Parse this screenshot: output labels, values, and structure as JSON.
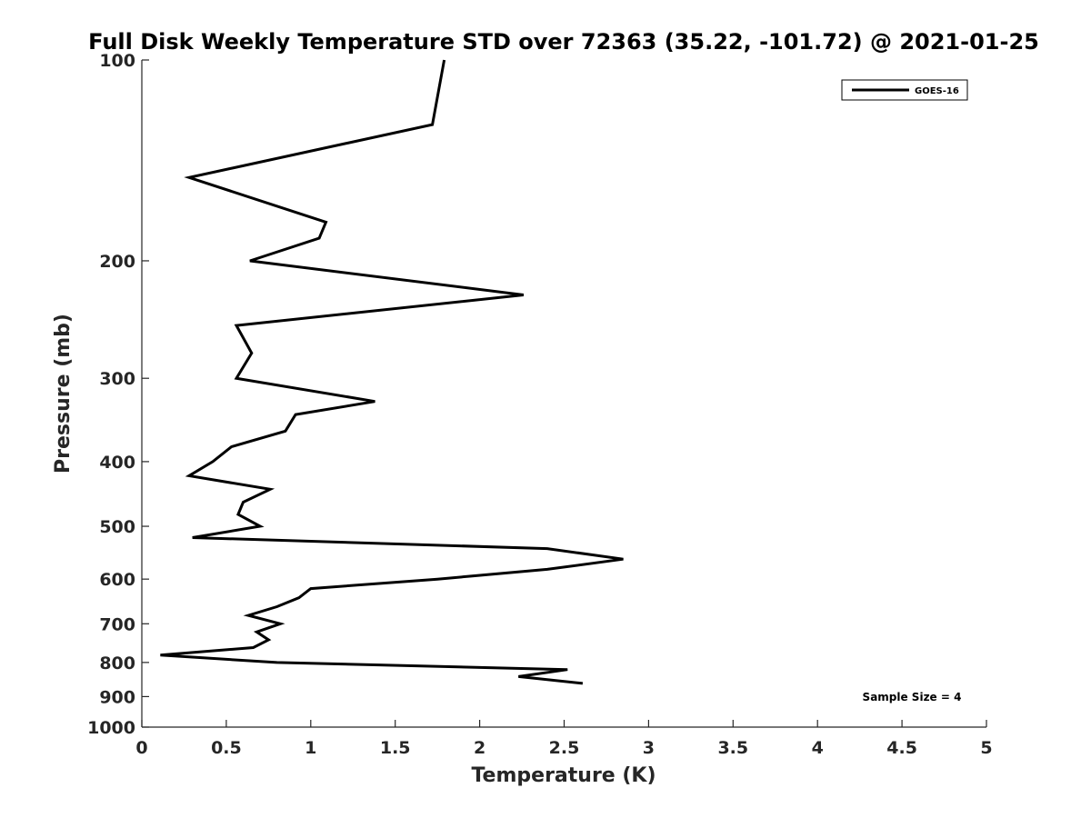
{
  "chart_data": {
    "type": "line",
    "title": "Full Disk Weekly Temperature STD over 72363 (35.22, -101.72) @ 2021-01-25",
    "xlabel": "Temperature (K)",
    "ylabel": "Pressure (mb)",
    "xlim": [
      0,
      5
    ],
    "ylim": [
      100,
      1000
    ],
    "yscale": "log",
    "y_reversed": true,
    "grid": false,
    "legend_position": "top-right",
    "x_ticks": [
      "0",
      "0.5",
      "1",
      "1.5",
      "2",
      "2.5",
      "3",
      "3.5",
      "4",
      "4.5",
      "5"
    ],
    "y_ticks": [
      "100",
      "200",
      "300",
      "400",
      "500",
      "600",
      "700",
      "800",
      "900",
      "1000"
    ],
    "series": [
      {
        "name": "GOES-16",
        "color": "#000000",
        "x": [
          1.79,
          1.72,
          0.28,
          1.09,
          1.05,
          0.64,
          2.26,
          0.56,
          0.65,
          0.56,
          1.38,
          0.91,
          0.85,
          0.53,
          0.42,
          0.28,
          0.76,
          0.6,
          0.57,
          0.7,
          0.3,
          2.4,
          2.85,
          2.4,
          1.75,
          1.0,
          0.93,
          0.8,
          0.63,
          0.82,
          0.68,
          0.75,
          0.66,
          0.11,
          0.8,
          2.52,
          2.23,
          2.61
        ],
        "y": [
          100,
          125,
          150,
          175,
          185,
          200,
          225,
          250,
          275,
          300,
          325,
          340,
          360,
          380,
          400,
          420,
          440,
          460,
          480,
          500,
          520,
          540,
          560,
          580,
          600,
          620,
          640,
          660,
          680,
          700,
          720,
          740,
          760,
          780,
          800,
          820,
          840,
          860
        ]
      }
    ],
    "annotations": [
      "Sample Size = 4"
    ]
  }
}
